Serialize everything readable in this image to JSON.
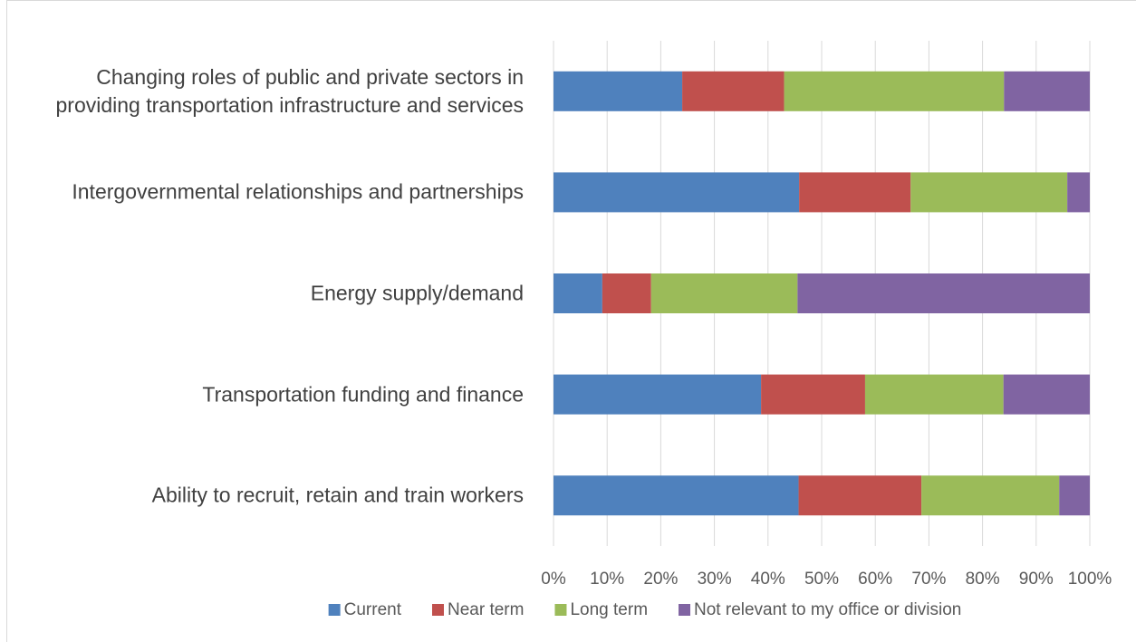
{
  "chart_data": {
    "type": "bar",
    "orientation": "horizontal",
    "stacked": true,
    "categories": [
      "Changing roles of public and private sectors in providing transportation infrastructure and services",
      "Intergovernmental relationships and partnerships",
      "Energy supply/demand",
      "Transportation funding and finance",
      "Ability to recruit, retain and train workers"
    ],
    "series": [
      {
        "name": "Current",
        "color": "#4f81bd",
        "values": [
          24,
          45.8,
          9.1,
          38.7,
          45.7
        ]
      },
      {
        "name": "Near term",
        "color": "#c0504d",
        "values": [
          19,
          20.8,
          9.1,
          19.4,
          22.9
        ]
      },
      {
        "name": "Long term",
        "color": "#9bbb59",
        "values": [
          41,
          29.2,
          27.3,
          25.8,
          25.7
        ]
      },
      {
        "name": "Not relevant to my office or division",
        "color": "#8064a2",
        "values": [
          16,
          4.2,
          54.5,
          16.1,
          5.7
        ]
      }
    ],
    "xlim": [
      0,
      100
    ],
    "xticks": [
      {
        "value": 0,
        "label": "0%"
      },
      {
        "value": 10,
        "label": "10%"
      },
      {
        "value": 20,
        "label": "20%"
      },
      {
        "value": 30,
        "label": "30%"
      },
      {
        "value": 40,
        "label": "40%"
      },
      {
        "value": 50,
        "label": "50%"
      },
      {
        "value": 60,
        "label": "60%"
      },
      {
        "value": 70,
        "label": "70%"
      },
      {
        "value": 80,
        "label": "80%"
      },
      {
        "value": 90,
        "label": "90%"
      },
      {
        "value": 100,
        "label": "100%"
      }
    ],
    "grid": true,
    "legend": "bottom"
  }
}
